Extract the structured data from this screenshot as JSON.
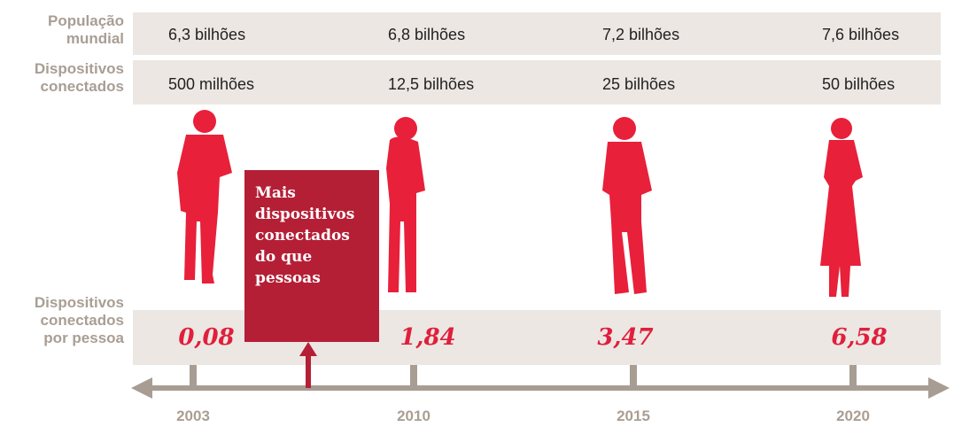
{
  "rows": [
    {
      "label": "População mundial",
      "values": [
        "6,3 bilhões",
        "6,8 bilhões",
        "7,2 bilhões",
        "7,6 bilhões"
      ]
    },
    {
      "label": "Dispositivos conectados",
      "values": [
        "500 milhões",
        "12,5 bilhões",
        "25 bilhões",
        "50 bilhões"
      ]
    },
    {
      "label": "Dispositivos conectados por pessoa",
      "values": [
        "0,08",
        "1,84",
        "3,47",
        "6,58"
      ]
    }
  ],
  "callout": "Mais dispositivos conectados do que pessoas",
  "timeline": [
    "2003",
    "2010",
    "2015",
    "2020"
  ]
}
